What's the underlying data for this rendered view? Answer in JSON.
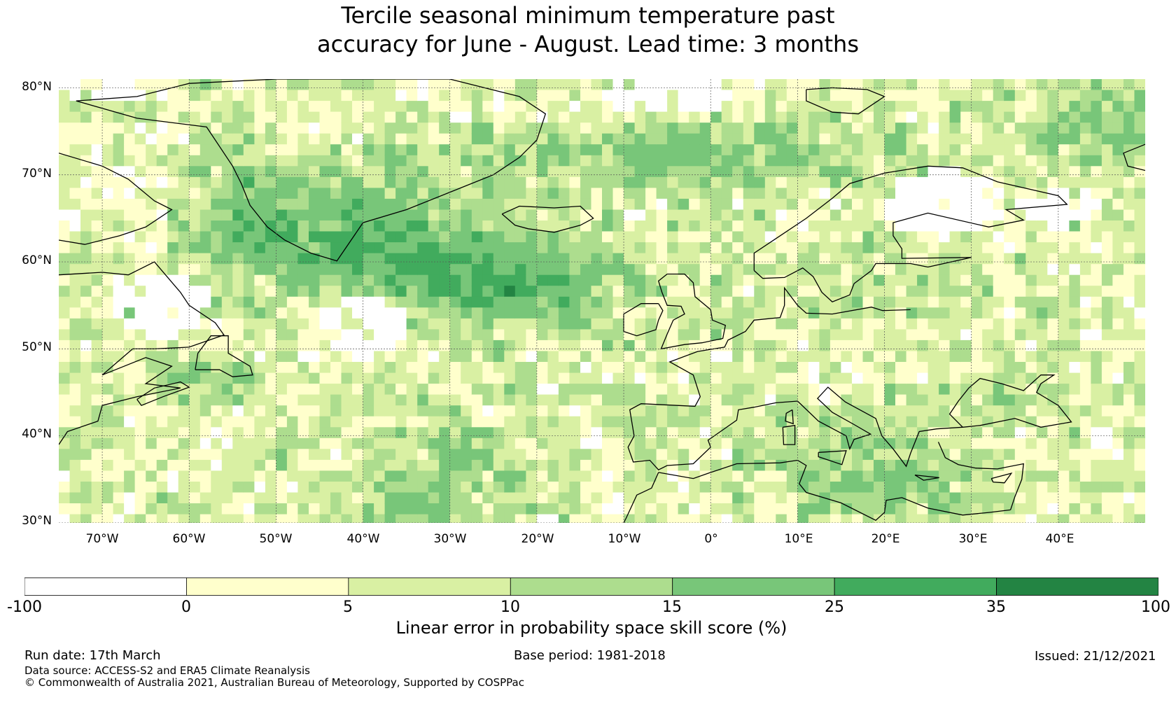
{
  "title_line1": "Tercile seasonal minimum temperature past",
  "title_line2": "accuracy for June - August. Lead time: 3 months",
  "map": {
    "lon_range": [
      -75,
      50
    ],
    "lat_range": [
      30,
      81
    ],
    "lat_labels": [
      "80°N",
      "70°N",
      "60°N",
      "50°N",
      "40°N",
      "30°N"
    ],
    "lat_values": [
      80,
      70,
      60,
      50,
      40,
      30
    ],
    "lon_labels": [
      "70°W",
      "60°W",
      "50°W",
      "40°W",
      "30°W",
      "20°W",
      "10°W",
      "0°",
      "10°E",
      "20°E",
      "30°E",
      "40°E"
    ],
    "lon_values": [
      -70,
      -60,
      -50,
      -40,
      -30,
      -20,
      -10,
      0,
      10,
      20,
      30,
      40
    ],
    "gridlines": true
  },
  "colorbar": {
    "ticks": [
      "-100",
      "0",
      "5",
      "10",
      "15",
      "25",
      "35",
      "100"
    ],
    "colors": [
      "#ffffff",
      "#ffffcc",
      "#d9f0a3",
      "#addd8e",
      "#78c679",
      "#41ab5d",
      "#238443"
    ],
    "label": "Linear error in probability space skill score (%)"
  },
  "footer": {
    "run_date": "Run date: 17th March",
    "base_period": "Base period: 1981-2018",
    "issued": "Issued: 21/12/2021",
    "data_source": "Data source: ACCESS-S2 and ERA5 Climate Reanalysis",
    "copyright": "© Commonwealth of Australia 2021, Australian Bureau of Meteorology, Supported by COSPPac"
  }
}
